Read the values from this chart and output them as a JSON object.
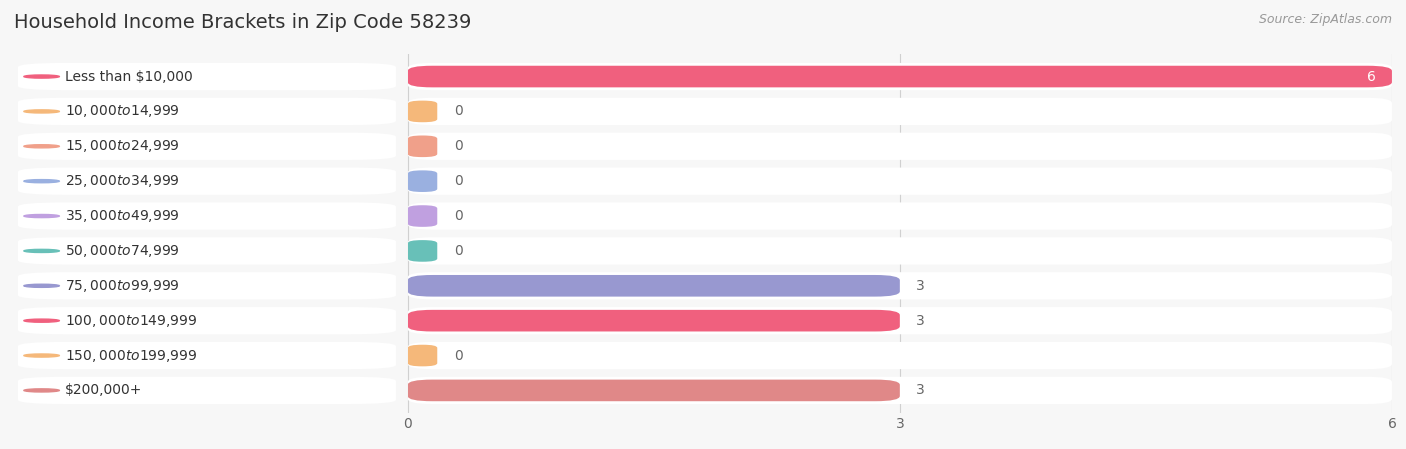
{
  "title": "Household Income Brackets in Zip Code 58239",
  "source": "Source: ZipAtlas.com",
  "categories": [
    "Less than $10,000",
    "$10,000 to $14,999",
    "$15,000 to $24,999",
    "$25,000 to $34,999",
    "$35,000 to $49,999",
    "$50,000 to $74,999",
    "$75,000 to $99,999",
    "$100,000 to $149,999",
    "$150,000 to $199,999",
    "$200,000+"
  ],
  "values": [
    6,
    0,
    0,
    0,
    0,
    0,
    3,
    3,
    0,
    3
  ],
  "bar_colors": [
    "#f0607e",
    "#f5b87a",
    "#f0a08a",
    "#9ab0e0",
    "#c0a0e0",
    "#68c0b8",
    "#9898d0",
    "#f0607e",
    "#f5b87a",
    "#e08888"
  ],
  "xlim": [
    0,
    6
  ],
  "xticks": [
    0,
    3,
    6
  ],
  "background_color": "#f7f7f7",
  "title_fontsize": 14,
  "source_fontsize": 9,
  "label_fontsize": 10,
  "value_fontsize": 10
}
